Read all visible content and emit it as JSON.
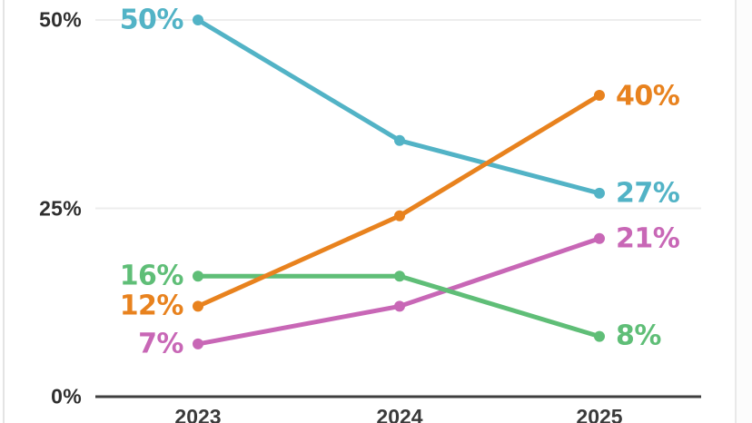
{
  "chart_data": {
    "type": "line",
    "x": [
      "2023",
      "2024",
      "2025"
    ],
    "series": [
      {
        "id": "teal",
        "color": "#52b3c6",
        "values": [
          50,
          34,
          27
        ],
        "label_start": "50%",
        "label_end": "27%"
      },
      {
        "id": "orange",
        "color": "#e8821e",
        "values": [
          12,
          24,
          40
        ],
        "label_start": "12%",
        "label_end": "40%"
      },
      {
        "id": "green",
        "color": "#5fbe77",
        "values": [
          16,
          16,
          8
        ],
        "label_start": "16%",
        "label_end": "8%"
      },
      {
        "id": "pink",
        "color": "#c867b6",
        "values": [
          7,
          12,
          21
        ],
        "label_start": "7%",
        "label_end": "21%"
      }
    ],
    "y_ticks": [
      {
        "label": "0%",
        "value": 0
      },
      {
        "label": "25%",
        "value": 25
      },
      {
        "label": "50%",
        "value": 50
      }
    ],
    "ylim": [
      0,
      50
    ],
    "grid": {
      "horizontal_at": [
        25,
        50
      ]
    },
    "legend": "none",
    "title": ""
  },
  "colors": {
    "axis_line": "#3f3f3f",
    "gridline": "#ededed",
    "tick_text": "#2f2f2f"
  }
}
